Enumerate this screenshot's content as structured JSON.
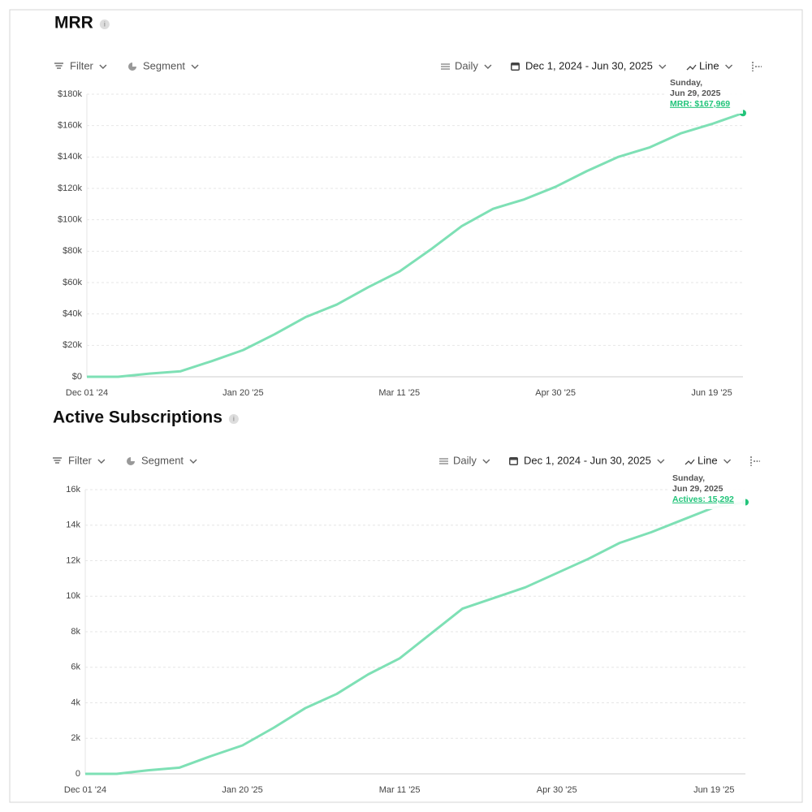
{
  "chart_data": [
    {
      "type": "line",
      "title": "MRR",
      "controls": [
        "Filter",
        "Segment",
        "Daily",
        "Dec 1, 2024 - Jun 30, 2025",
        "Line"
      ],
      "categories": [
        "Dec 01 '24",
        null,
        null,
        null,
        null,
        "Jan 20 '25",
        null,
        null,
        null,
        null,
        "Mar 11 '25",
        null,
        null,
        null,
        null,
        "Apr 30 '25",
        null,
        null,
        null,
        null,
        "Jun 19 '25",
        null
      ],
      "series": [
        {
          "name": "MRR",
          "color": "#7ee0b5",
          "values": [
            0,
            0,
            2000,
            3500,
            10000,
            17000,
            27000,
            38000,
            46000,
            57000,
            67000,
            81000,
            96000,
            107000,
            113000,
            121000,
            131000,
            140000,
            146000,
            155000,
            161000,
            167969
          ]
        }
      ],
      "ylim": [
        0,
        180000
      ],
      "yticks": [
        {
          "value": 0,
          "label": "$0"
        },
        {
          "value": 20000,
          "label": "$20k"
        },
        {
          "value": 40000,
          "label": "$40k"
        },
        {
          "value": 60000,
          "label": "$60k"
        },
        {
          "value": 80000,
          "label": "$80k"
        },
        {
          "value": 100000,
          "label": "$100k"
        },
        {
          "value": 120000,
          "label": "$120k"
        },
        {
          "value": 140000,
          "label": "$140k"
        },
        {
          "value": 160000,
          "label": "$160k"
        },
        {
          "value": 180000,
          "label": "$180k"
        }
      ],
      "grid": true,
      "tooltip": {
        "weekday": "Sunday,",
        "date": "Jun 29, 2025",
        "label": "MRR: $167,969"
      }
    },
    {
      "type": "line",
      "title": "Active Subscriptions",
      "controls": [
        "Filter",
        "Segment",
        "Daily",
        "Dec 1, 2024 - Jun 30, 2025",
        "Line"
      ],
      "categories": [
        "Dec 01 '24",
        null,
        null,
        null,
        null,
        "Jan 20 '25",
        null,
        null,
        null,
        null,
        "Mar 11 '25",
        null,
        null,
        null,
        null,
        "Apr 30 '25",
        null,
        null,
        null,
        null,
        "Jun 19 '25",
        null
      ],
      "series": [
        {
          "name": "Actives",
          "color": "#7ee0b5",
          "values": [
            0,
            0,
            200,
            350,
            1000,
            1600,
            2600,
            3700,
            4500,
            5600,
            6500,
            7900,
            9300,
            9900,
            10500,
            11300,
            12100,
            13000,
            13600,
            14300,
            15000,
            15292
          ]
        }
      ],
      "ylim": [
        0,
        16000
      ],
      "yticks": [
        0,
        {
          "value": 2000,
          "label": "2k"
        },
        {
          "value": 4000,
          "label": "4k"
        },
        {
          "value": 6000,
          "label": "6k"
        },
        {
          "value": 8000,
          "label": "8k"
        },
        {
          "value": 10000,
          "label": "10k"
        },
        {
          "value": 12000,
          "label": "12k"
        },
        {
          "value": 14000,
          "label": "14k"
        },
        {
          "value": 16000,
          "label": "16k"
        }
      ],
      "grid": true,
      "tooltip": {
        "weekday": "Sunday,",
        "date": "Jun 29, 2025",
        "label": "Actives: 15,292"
      }
    }
  ]
}
